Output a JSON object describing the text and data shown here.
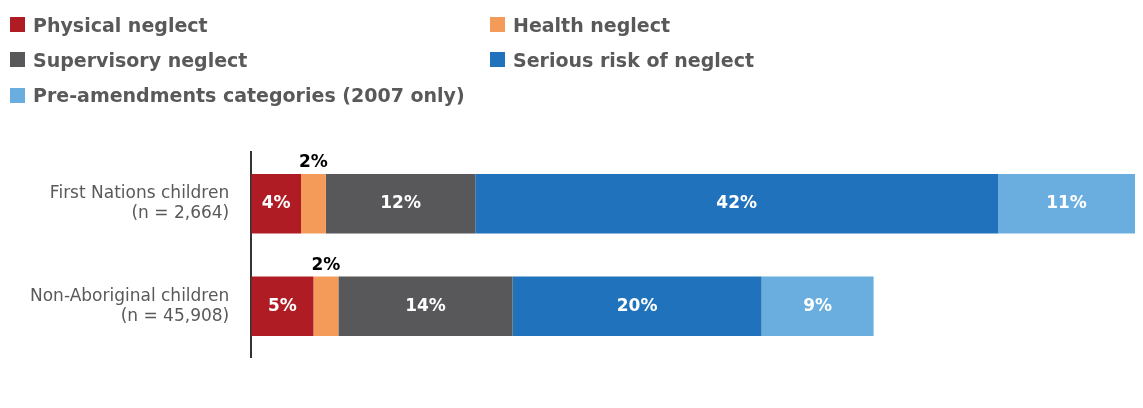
{
  "chart_data": {
    "type": "bar",
    "orientation": "horizontal",
    "stacked": true,
    "legend": "top left",
    "categories": [
      "First Nations children\n(n = 2,664)",
      "Non-Aboriginal children\n(n = 45,908)"
    ],
    "series": [
      {
        "name": "Physical neglect",
        "color": "#b01c24",
        "values": [
          4,
          5
        ],
        "value_labels": [
          "4%",
          "5%"
        ]
      },
      {
        "name": "Health neglect",
        "color": "#f59b5a",
        "values": [
          2,
          2
        ],
        "value_labels": [
          "2%",
          "2%"
        ]
      },
      {
        "name": "Supervisory neglect",
        "color": "#58585a",
        "values": [
          12,
          14
        ],
        "value_labels": [
          "12%",
          "14%"
        ]
      },
      {
        "name": "Serious risk of neglect",
        "color": "#1f72bb",
        "values": [
          42,
          20
        ],
        "value_labels": [
          "42%",
          "20%"
        ]
      },
      {
        "name": "Pre-amendments categories (2007 only)",
        "color": "#6aaee0",
        "values": [
          11,
          9
        ],
        "value_labels": [
          "11%",
          "9%"
        ]
      }
    ]
  }
}
